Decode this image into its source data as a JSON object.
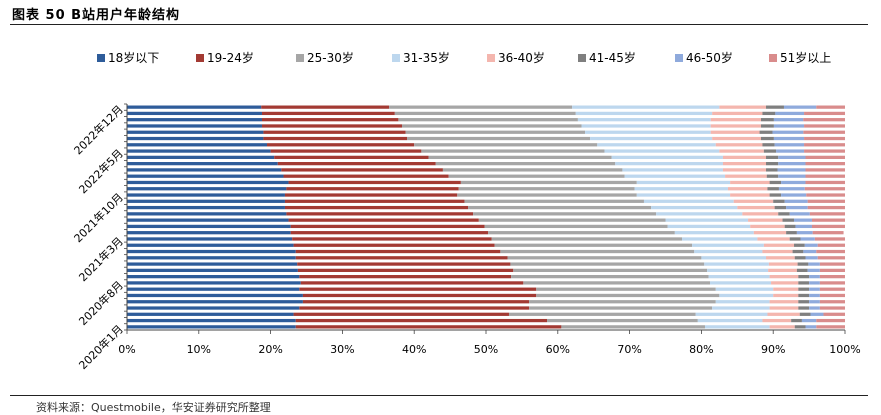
{
  "header": {
    "title": "图表 50 B站用户年龄结构"
  },
  "footer": {
    "source": "资料来源：Questmobile，华安证券研究所整理"
  },
  "chart_data": {
    "type": "bar",
    "orientation": "horizontal",
    "stacked": true,
    "percent": true,
    "legend_position": "top",
    "grid": false,
    "xlim": [
      0,
      100
    ],
    "x_ticks": [
      "0%",
      "10%",
      "20%",
      "30%",
      "40%",
      "50%",
      "60%",
      "70%",
      "80%",
      "90%",
      "100%"
    ],
    "y_tick_labels": [
      "2020年1月",
      "2020年8月",
      "2021年3月",
      "2021年10月",
      "2022年5月",
      "2022年12月"
    ],
    "y_tick_label_indices": [
      0,
      7,
      14,
      21,
      28,
      35
    ],
    "categories": [
      "2020-01",
      "2020-02",
      "2020-03",
      "2020-04",
      "2020-05",
      "2020-06",
      "2020-07",
      "2020-08",
      "2020-09",
      "2020-10",
      "2020-11",
      "2020-12",
      "2021-01",
      "2021-02",
      "2021-03",
      "2021-04",
      "2021-05",
      "2021-06",
      "2021-07",
      "2021-08",
      "2021-09",
      "2021-10",
      "2021-11",
      "2021-12",
      "2022-01",
      "2022-02",
      "2022-03",
      "2022-04",
      "2022-05",
      "2022-06",
      "2022-07",
      "2022-08",
      "2022-09",
      "2022-10",
      "2022-11",
      "2022-12"
    ],
    "series": [
      {
        "name": "18岁以下",
        "color": "#2E5C9A",
        "values": [
          23.5,
          23.5,
          23.2,
          24.0,
          24.5,
          24.5,
          24.0,
          24.2,
          24.0,
          23.8,
          23.7,
          23.5,
          23.5,
          23.2,
          23.0,
          22.8,
          22.8,
          22.5,
          22.2,
          22.0,
          22.0,
          22.0,
          22.2,
          22.5,
          21.8,
          21.5,
          21.0,
          20.5,
          20.0,
          19.5,
          19.0,
          19.0,
          18.8,
          18.8,
          18.8,
          18.7
        ]
      },
      {
        "name": "19-24岁",
        "color": "#A33A33",
        "values": [
          37.0,
          35.0,
          30.0,
          32.0,
          31.5,
          32.5,
          33.0,
          31.0,
          29.5,
          30.0,
          29.7,
          29.5,
          28.5,
          28.0,
          27.8,
          27.5,
          27.0,
          26.5,
          26.0,
          25.5,
          25.0,
          24.0,
          24.0,
          24.0,
          23.0,
          22.5,
          22.0,
          21.5,
          21.0,
          20.5,
          20.0,
          19.8,
          19.5,
          19.0,
          18.5,
          17.8
        ]
      },
      {
        "name": "25-30岁",
        "color": "#A6A6A6",
        "values": [
          20.0,
          21.0,
          26.0,
          25.5,
          26.0,
          25.5,
          25.0,
          26.0,
          27.5,
          27.0,
          27.0,
          27.0,
          27.0,
          27.5,
          26.5,
          26.0,
          25.5,
          26.0,
          25.5,
          25.5,
          25.0,
          25.0,
          24.5,
          24.5,
          24.5,
          25.0,
          25.0,
          25.5,
          25.5,
          25.5,
          25.5,
          25.0,
          25.0,
          25.0,
          25.2,
          25.5
        ]
      },
      {
        "name": "31-35岁",
        "color": "#BDD7EE",
        "values": [
          9.0,
          9.0,
          10.0,
          8.0,
          7.5,
          7.5,
          8.0,
          8.5,
          8.5,
          8.5,
          9.0,
          9.0,
          9.5,
          10.0,
          10.5,
          11.0,
          11.5,
          11.5,
          12.0,
          12.0,
          12.5,
          13.0,
          13.0,
          13.0,
          14.0,
          14.0,
          15.0,
          15.5,
          16.0,
          16.5,
          17.0,
          17.5,
          18.0,
          18.5,
          19.0,
          20.5
        ]
      },
      {
        "name": "36-40岁",
        "color": "#F4B6AE",
        "values": [
          3.5,
          4.0,
          4.5,
          4.0,
          4.0,
          3.5,
          3.5,
          3.8,
          4.0,
          4.0,
          4.0,
          4.0,
          4.2,
          4.2,
          4.5,
          4.5,
          4.8,
          4.8,
          5.0,
          5.2,
          5.5,
          5.5,
          5.5,
          5.5,
          5.8,
          6.0,
          6.0,
          6.0,
          6.2,
          6.5,
          6.8,
          6.8,
          7.0,
          7.0,
          7.0,
          6.5
        ]
      },
      {
        "name": "41-45岁",
        "color": "#7F7F7F",
        "values": [
          1.5,
          1.5,
          1.5,
          1.5,
          1.5,
          1.5,
          1.5,
          1.5,
          1.5,
          1.5,
          1.5,
          1.5,
          1.5,
          1.5,
          1.5,
          1.5,
          1.5,
          1.6,
          1.6,
          1.6,
          1.6,
          1.6,
          1.6,
          1.6,
          1.6,
          1.6,
          1.7,
          1.7,
          1.7,
          1.7,
          1.8,
          1.8,
          1.8,
          1.8,
          1.8,
          2.5
        ]
      },
      {
        "name": "46-50岁",
        "color": "#8FAADC",
        "values": [
          1.5,
          2.0,
          1.8,
          1.5,
          1.5,
          1.5,
          1.5,
          1.5,
          1.5,
          1.7,
          1.6,
          1.7,
          1.8,
          1.8,
          2.0,
          2.2,
          2.3,
          2.5,
          2.8,
          3.0,
          3.2,
          3.5,
          3.6,
          3.4,
          3.8,
          3.9,
          3.8,
          3.8,
          3.9,
          4.1,
          4.2,
          4.3,
          4.2,
          4.1,
          4.0,
          4.5
        ]
      },
      {
        "name": "51岁以上",
        "color": "#D98C8C",
        "values": [
          4.0,
          4.0,
          3.0,
          3.5,
          3.5,
          3.5,
          3.5,
          3.5,
          3.5,
          3.5,
          3.5,
          3.8,
          4.0,
          3.8,
          4.2,
          4.3,
          4.6,
          4.6,
          4.9,
          5.2,
          5.2,
          5.4,
          5.6,
          5.5,
          5.5,
          5.5,
          5.5,
          5.5,
          5.7,
          5.7,
          5.7,
          5.8,
          5.7,
          5.8,
          5.7,
          4.0
        ]
      }
    ]
  }
}
